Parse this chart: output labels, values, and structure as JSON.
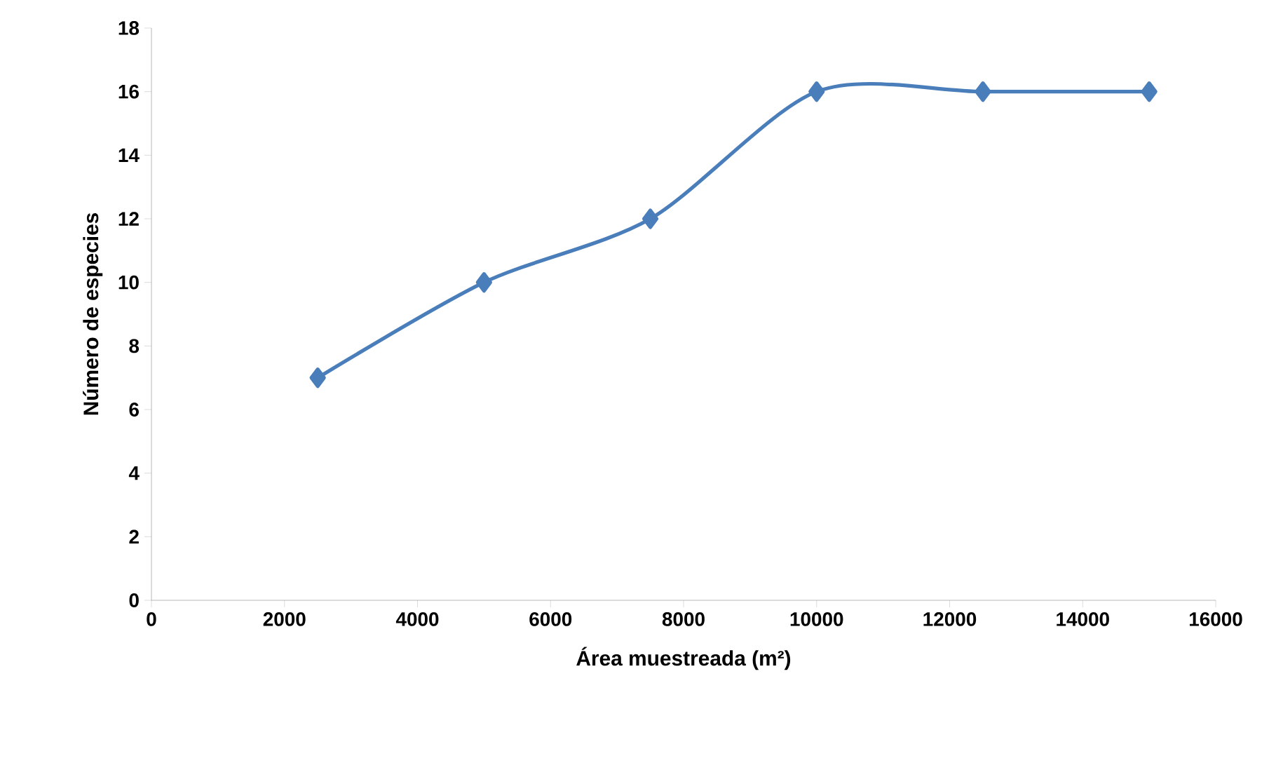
{
  "chart_data": {
    "type": "line",
    "xlabel": "Área muestreada (m²)",
    "ylabel": "Número de especies",
    "x": [
      2500,
      5000,
      7500,
      10000,
      12500,
      15000
    ],
    "series": [
      {
        "color": "#4a7ebb",
        "values": [
          7,
          10,
          12,
          16,
          16,
          16
        ]
      }
    ],
    "xlim": [
      0,
      16000
    ],
    "ylim": [
      0,
      18
    ],
    "xticks": [
      0,
      2000,
      4000,
      6000,
      8000,
      10000,
      12000,
      14000,
      16000
    ],
    "yticks": [
      0,
      2,
      4,
      6,
      8,
      10,
      12,
      14,
      16,
      18
    ],
    "marker": "diamond",
    "grid": false
  }
}
